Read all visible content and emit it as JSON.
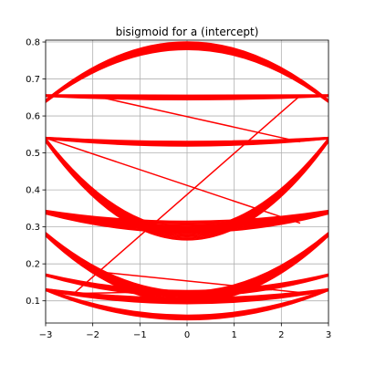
{
  "chart_data": {
    "type": "line",
    "title": "bisigmoid for a (intercept)",
    "xlabel": "",
    "ylabel": "",
    "xlim": [
      -3,
      3
    ],
    "ylim": [
      0.04,
      0.805
    ],
    "xticks": [
      -3,
      -2,
      -1,
      0,
      1,
      2,
      3
    ],
    "yticks": [
      0.1,
      0.2,
      0.3,
      0.4,
      0.5,
      0.6,
      0.7,
      0.8
    ],
    "xtick_labels": [
      "−3",
      "−2",
      "−1",
      "0",
      "1",
      "2",
      "3"
    ],
    "ytick_labels": [
      "0.1",
      "0.2",
      "0.3",
      "0.4",
      "0.5",
      "0.6",
      "0.7",
      "0.8"
    ],
    "grid": true,
    "legend": "none",
    "line_color": "#ff0000",
    "series": [
      {
        "values_at_x": [
          [
            -3,
            0.64
          ],
          [
            0,
            0.79
          ],
          [
            3,
            0.64
          ]
        ],
        "spread": 0.02
      },
      {
        "values_at_x": [
          [
            -3,
            0.655
          ],
          [
            0,
            0.65
          ],
          [
            3,
            0.655
          ]
        ],
        "spread": 0.012
      },
      {
        "values_at_x": [
          [
            -3,
            0.54
          ],
          [
            0,
            0.525
          ],
          [
            3,
            0.54
          ]
        ],
        "spread": 0.012
      },
      {
        "values_at_x": [
          [
            -3,
            0.535
          ],
          [
            0,
            0.28
          ],
          [
            3,
            0.535
          ]
        ],
        "spread": 0.03
      },
      {
        "values_at_x": [
          [
            -3,
            0.34
          ],
          [
            0,
            0.3
          ],
          [
            3,
            0.34
          ]
        ],
        "spread": 0.03
      },
      {
        "values_at_x": [
          [
            -3,
            0.17
          ],
          [
            0,
            0.12
          ],
          [
            3,
            0.17
          ]
        ],
        "spread": 0.015
      },
      {
        "values_at_x": [
          [
            -3,
            0.28
          ],
          [
            0,
            0.11
          ],
          [
            3,
            0.28
          ]
        ],
        "spread": 0.03
      },
      {
        "values_at_x": [
          [
            -3,
            0.13
          ],
          [
            0,
            0.1
          ],
          [
            3,
            0.13
          ]
        ],
        "spread": 0.015
      },
      {
        "values_at_x": [
          [
            -3,
            0.13
          ],
          [
            0,
            0.055
          ],
          [
            3,
            0.13
          ]
        ],
        "spread": 0.012
      }
    ],
    "connectors": [
      {
        "x": [
          -2.4,
          2.4
        ],
        "y": [
          0.12,
          0.655
        ]
      },
      {
        "x": [
          -2.0,
          2.4
        ],
        "y": [
          0.655,
          0.53
        ]
      },
      {
        "x": [
          -3.0,
          2.4
        ],
        "y": [
          0.54,
          0.31
        ]
      },
      {
        "x": [
          -2.4,
          1.8
        ],
        "y": [
          0.12,
          0.13
        ]
      },
      {
        "x": [
          -2.0,
          2.6
        ],
        "y": [
          0.18,
          0.12
        ]
      }
    ]
  }
}
